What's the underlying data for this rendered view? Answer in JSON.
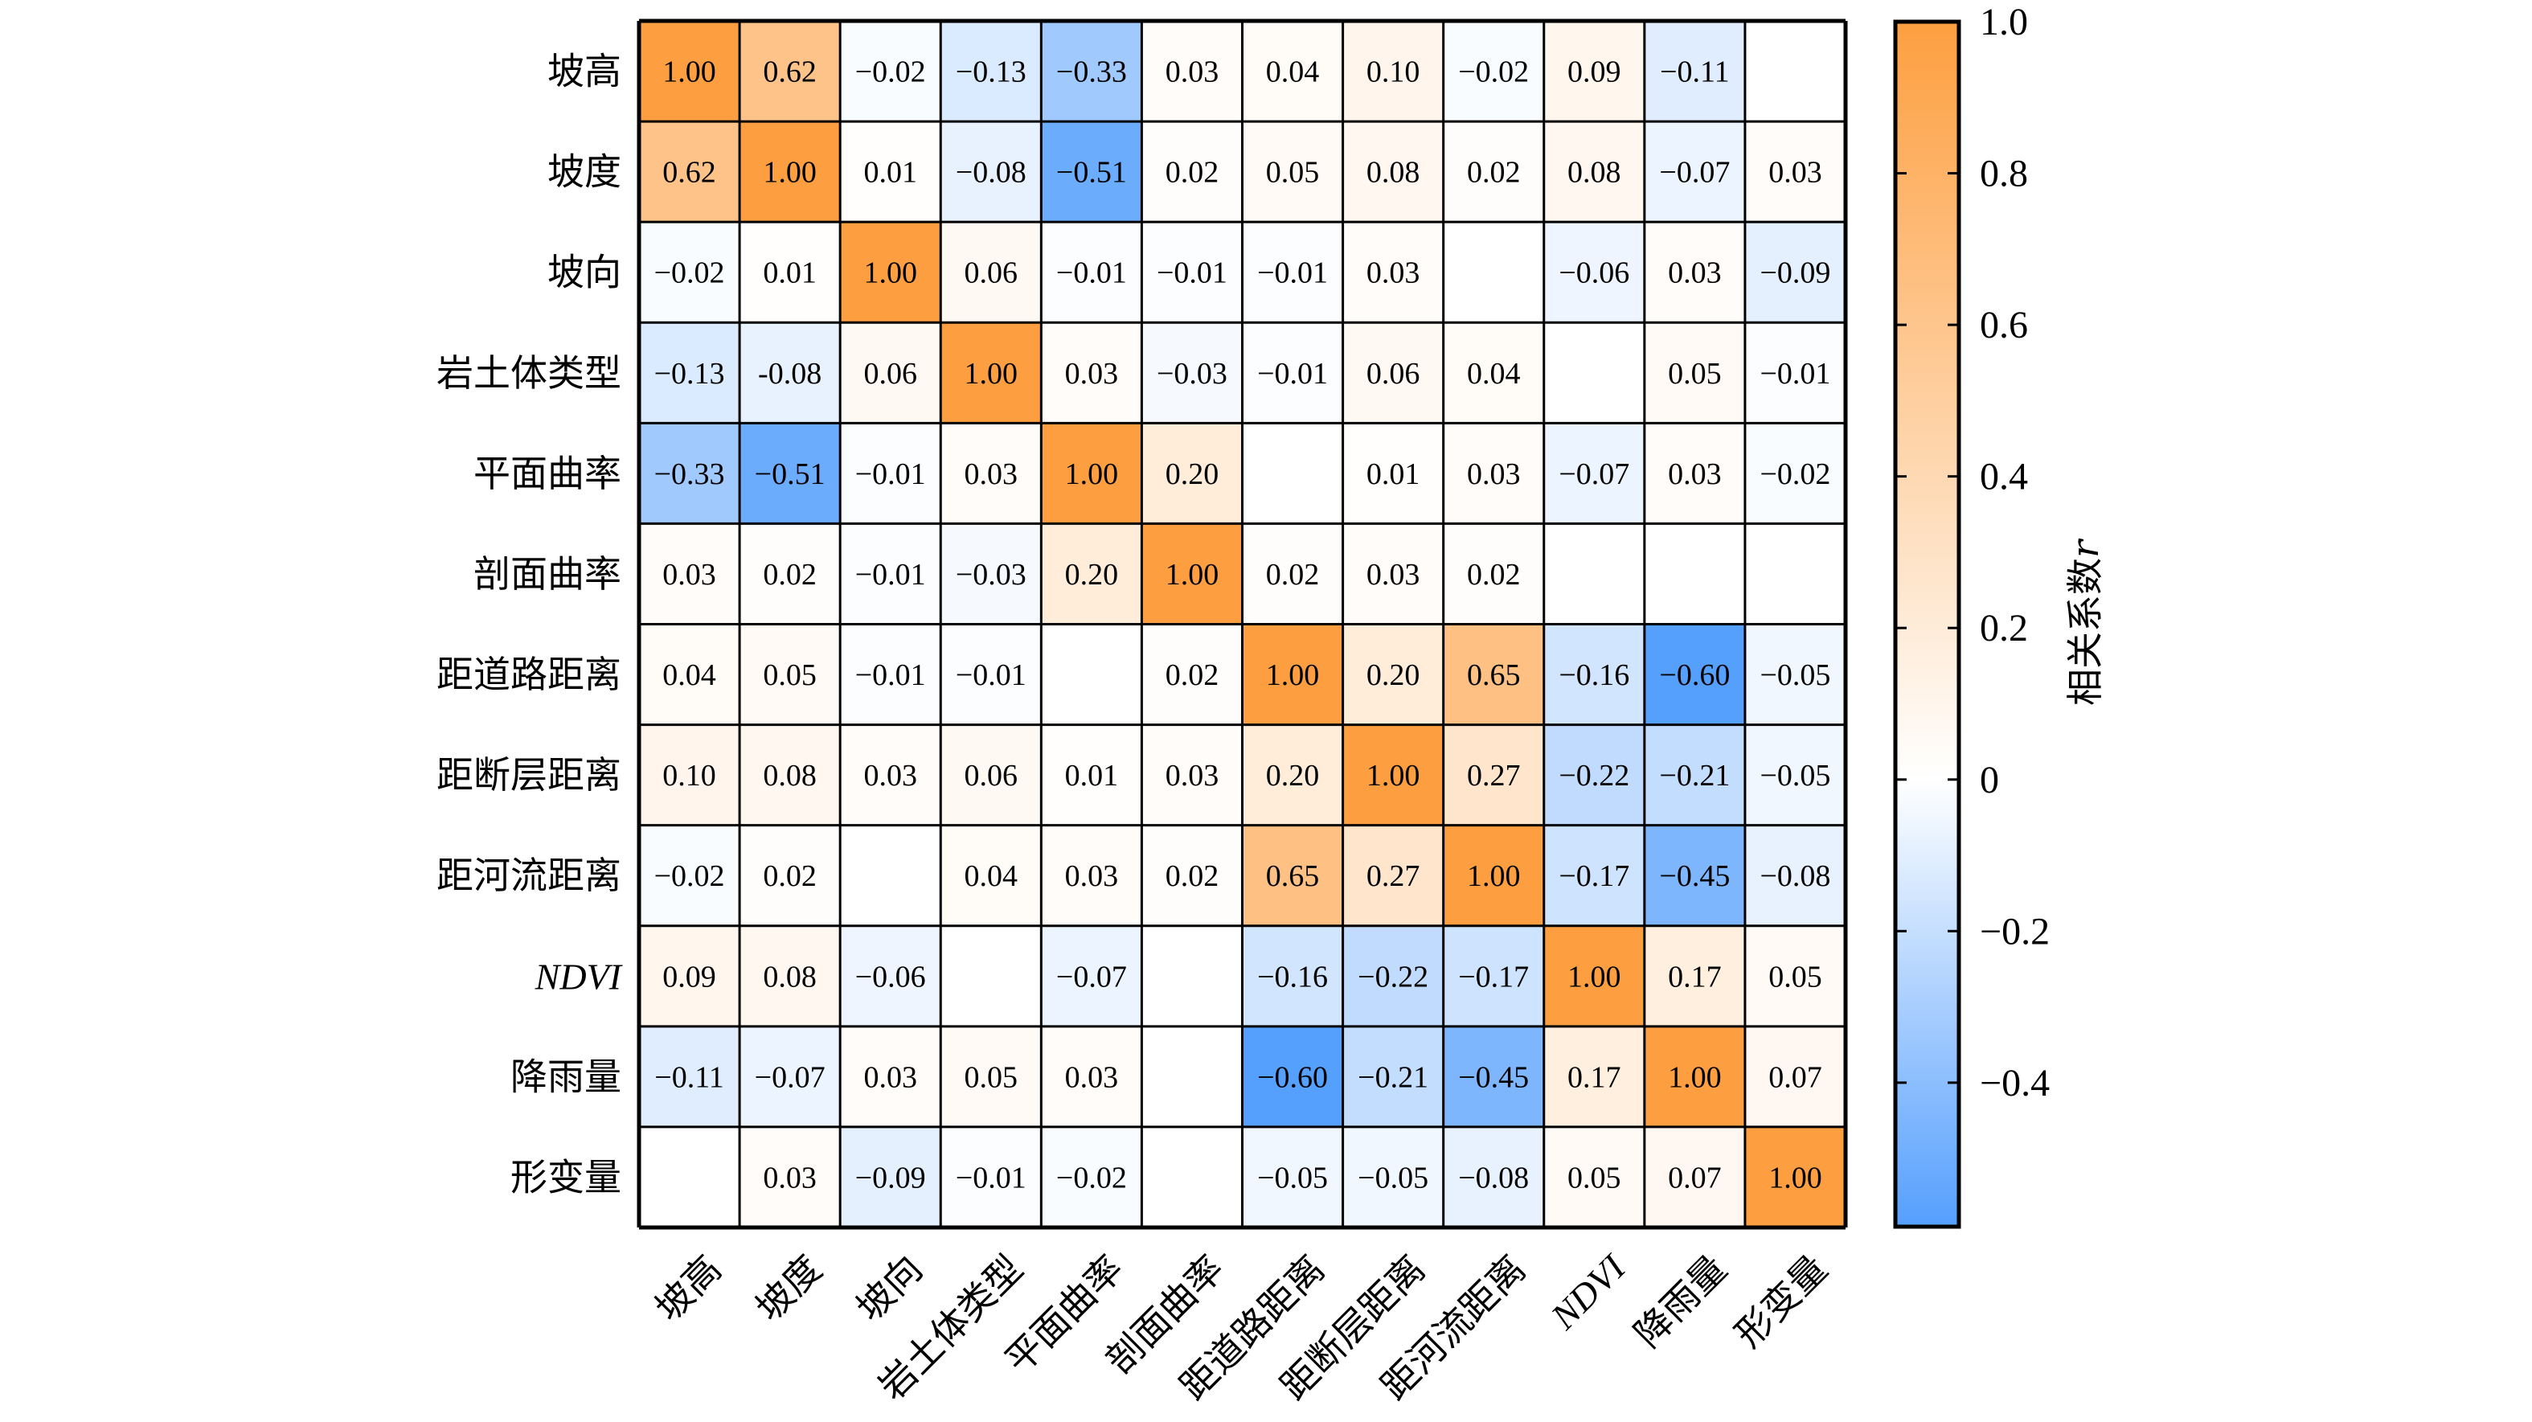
{
  "chart_data": {
    "type": "heatmap",
    "title": "",
    "variables": [
      "坡高",
      "坡度",
      "坡向",
      "岩土体类型",
      "平面曲率",
      "剖面曲率",
      "距道路距离",
      "距断层距离",
      "距河流距离",
      "NDVI",
      "降雨量",
      "形变量"
    ],
    "italic_variables": [
      "NDVI"
    ],
    "matrix": [
      [
        1.0,
        0.62,
        -0.02,
        -0.13,
        -0.33,
        0.03,
        0.04,
        0.1,
        -0.02,
        0.09,
        -0.11,
        null
      ],
      [
        0.62,
        1.0,
        0.01,
        -0.08,
        -0.51,
        0.02,
        0.05,
        0.08,
        0.02,
        0.08,
        -0.07,
        0.03
      ],
      [
        -0.02,
        0.01,
        1.0,
        0.06,
        -0.01,
        -0.01,
        -0.01,
        0.03,
        null,
        -0.06,
        0.03,
        -0.09
      ],
      [
        -0.13,
        -0.08,
        0.06,
        1.0,
        0.03,
        -0.03,
        -0.01,
        0.06,
        0.04,
        null,
        0.05,
        -0.01
      ],
      [
        -0.33,
        -0.51,
        -0.01,
        0.03,
        1.0,
        0.2,
        null,
        0.01,
        0.03,
        -0.07,
        0.03,
        -0.02
      ],
      [
        0.03,
        0.02,
        -0.01,
        -0.03,
        0.2,
        1.0,
        0.02,
        0.03,
        0.02,
        null,
        null,
        null
      ],
      [
        0.04,
        0.05,
        -0.01,
        -0.01,
        null,
        0.02,
        1.0,
        0.2,
        0.65,
        -0.16,
        -0.6,
        -0.05
      ],
      [
        0.1,
        0.08,
        0.03,
        0.06,
        0.01,
        0.03,
        0.2,
        1.0,
        0.27,
        -0.22,
        -0.21,
        -0.05
      ],
      [
        -0.02,
        0.02,
        null,
        0.04,
        0.03,
        0.02,
        0.65,
        0.27,
        1.0,
        -0.17,
        -0.45,
        -0.08
      ],
      [
        0.09,
        0.08,
        -0.06,
        null,
        -0.07,
        null,
        -0.16,
        -0.22,
        -0.17,
        1.0,
        0.17,
        0.05
      ],
      [
        -0.11,
        -0.07,
        0.03,
        0.05,
        0.03,
        null,
        -0.6,
        -0.21,
        -0.45,
        0.17,
        1.0,
        0.07
      ],
      [
        null,
        0.03,
        -0.09,
        -0.01,
        -0.02,
        null,
        -0.05,
        -0.05,
        -0.08,
        0.05,
        0.07,
        1.0
      ]
    ],
    "cell_labels": [
      [
        "1.00",
        "0.62",
        "−0.02",
        "−0.13",
        "−0.33",
        "0.03",
        "0.04",
        "0.10",
        "−0.02",
        "0.09",
        "−0.11",
        ""
      ],
      [
        "0.62",
        "1.00",
        "0.01",
        "−0.08",
        "−0.51",
        "0.02",
        "0.05",
        "0.08",
        "0.02",
        "0.08",
        "−0.07",
        "0.03"
      ],
      [
        "−0.02",
        "0.01",
        "1.00",
        "0.06",
        "−0.01",
        "−0.01",
        "−0.01",
        "0.03",
        "",
        "−0.06",
        "0.03",
        "−0.09"
      ],
      [
        "−0.13",
        "-0.08",
        "0.06",
        "1.00",
        "0.03",
        "−0.03",
        "−0.01",
        "0.06",
        "0.04",
        "",
        "0.05",
        "−0.01"
      ],
      [
        "−0.33",
        "−0.51",
        "−0.01",
        "0.03",
        "1.00",
        "0.20",
        "",
        "0.01",
        "0.03",
        "−0.07",
        "0.03",
        "−0.02"
      ],
      [
        "0.03",
        "0.02",
        "−0.01",
        "−0.03",
        "0.20",
        "1.00",
        "0.02",
        "0.03",
        "0.02",
        "",
        "",
        ""
      ],
      [
        "0.04",
        "0.05",
        "−0.01",
        "−0.01",
        "",
        "0.02",
        "1.00",
        "0.20",
        "0.65",
        "−0.16",
        "−0.60",
        "−0.05"
      ],
      [
        "0.10",
        "0.08",
        "0.03",
        "0.06",
        "0.01",
        "0.03",
        "0.20",
        "1.00",
        "0.27",
        "−0.22",
        "−0.21",
        "−0.05"
      ],
      [
        "−0.02",
        "0.02",
        "",
        "0.04",
        "0.03",
        "0.02",
        "0.65",
        "0.27",
        "1.00",
        "−0.17",
        "−0.45",
        "−0.08"
      ],
      [
        "0.09",
        "0.08",
        "−0.06",
        "",
        "−0.07",
        "",
        "−0.16",
        "−0.22",
        "−0.17",
        "1.00",
        "0.17",
        "0.05"
      ],
      [
        "−0.11",
        "−0.07",
        "0.03",
        "0.05",
        "0.03",
        "",
        "−0.60",
        "−0.21",
        "−0.45",
        "0.17",
        "1.00",
        "0.07"
      ],
      [
        "",
        "0.03",
        "−0.09",
        "−0.01",
        "−0.02",
        "",
        "−0.05",
        "−0.05",
        "−0.08",
        "0.05",
        "0.07",
        "1.00"
      ]
    ],
    "colorbar": {
      "label": "相关系数",
      "label_italic_suffix": "r",
      "range": [
        -0.59,
        1.0
      ],
      "ticks": [
        1.0,
        0.8,
        0.6,
        0.4,
        0.2,
        0,
        -0.2,
        -0.4
      ],
      "tick_labels": [
        "1.0",
        "0.8",
        "0.6",
        "0.4",
        "0.2",
        "0",
        "−0.2",
        "−0.4"
      ],
      "placement": "right"
    },
    "colormap": {
      "positive_max": "#fd9f40",
      "zero": "#ffffff",
      "negative_max": "#559ffd"
    },
    "xlabel": "",
    "ylabel": "",
    "x_tick_rotation_deg": 45,
    "grid": true
  }
}
